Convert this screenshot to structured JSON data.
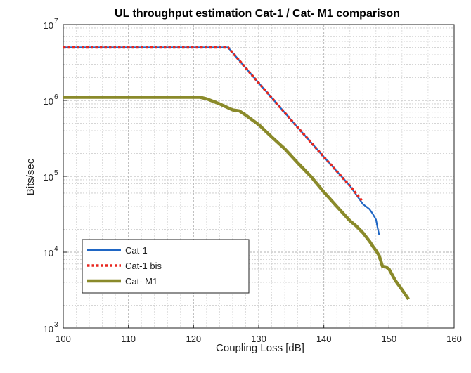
{
  "chart_data": {
    "type": "line",
    "title": "UL throughput estimation Cat-1 / Cat- M1 comparison",
    "xlabel": "Coupling Loss  [dB]",
    "ylabel": "Bits/sec",
    "yscale": "log",
    "xlim": [
      100,
      160
    ],
    "ylim": [
      1000,
      10000000
    ],
    "xticks": [
      100,
      110,
      120,
      130,
      140,
      150,
      160
    ],
    "yticks": [
      {
        "value": 1000,
        "base": "10",
        "exp": "3"
      },
      {
        "value": 10000,
        "base": "10",
        "exp": "4"
      },
      {
        "value": 100000,
        "base": "10",
        "exp": "5"
      },
      {
        "value": 1000000,
        "base": "10",
        "exp": "6"
      },
      {
        "value": 10000000,
        "base": "10",
        "exp": "7"
      }
    ],
    "grid": true,
    "legend_position": "bottom-left",
    "series": [
      {
        "name": "Cat-1",
        "color": "#1f66c4",
        "style": "solid",
        "x": [
          100,
          110,
          120,
          125.3,
          130,
          135,
          140,
          144,
          146,
          147,
          147.5,
          148,
          148.3,
          148.5
        ],
        "y": [
          5000000,
          5000000,
          5000000,
          5000000,
          1700000,
          550000,
          180000,
          75000,
          43000,
          37000,
          32000,
          27000,
          20000,
          17000
        ]
      },
      {
        "name": "Cat-1 bis",
        "color": "#e8271f",
        "style": "dotted",
        "x": [
          100,
          110,
          120,
          125.3,
          130,
          135,
          140,
          144,
          146
        ],
        "y": [
          5000000,
          5000000,
          5000000,
          5000000,
          1700000,
          550000,
          180000,
          75000,
          46000
        ]
      },
      {
        "name": "Cat- M1",
        "color": "#8a8a2a",
        "style": "thick",
        "x": [
          100,
          110,
          121,
          122,
          124,
          126,
          127,
          128,
          130,
          132,
          134,
          136,
          138,
          140,
          142,
          144,
          145,
          146,
          147,
          147.5,
          148,
          148.5,
          149,
          149.5,
          150,
          151,
          152,
          153
        ],
        "y": [
          1100000,
          1100000,
          1100000,
          1050000,
          900000,
          750000,
          730000,
          640000,
          480000,
          330000,
          230000,
          150000,
          100000,
          62000,
          40000,
          26000,
          22000,
          18000,
          14000,
          12000,
          10500,
          9000,
          6500,
          6400,
          6000,
          4200,
          3200,
          2400
        ]
      }
    ]
  }
}
